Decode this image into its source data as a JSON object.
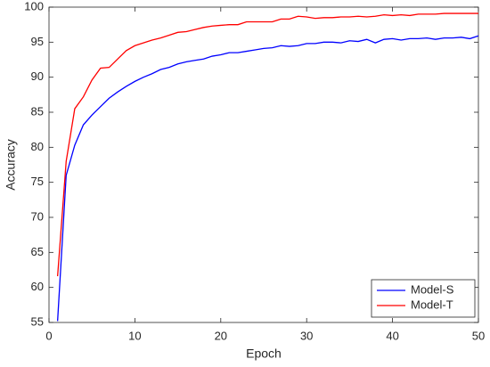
{
  "chart_data": {
    "type": "line",
    "x_label": "Epoch",
    "y_label": "Accuracy",
    "x": [
      1,
      2,
      3,
      4,
      5,
      6,
      7,
      8,
      9,
      10,
      11,
      12,
      13,
      14,
      15,
      16,
      17,
      18,
      19,
      20,
      21,
      22,
      23,
      24,
      25,
      26,
      27,
      28,
      29,
      30,
      31,
      32,
      33,
      34,
      35,
      36,
      37,
      38,
      39,
      40,
      41,
      42,
      43,
      44,
      45,
      46,
      47,
      48,
      49,
      50
    ],
    "series": [
      {
        "name": "Model-S",
        "color": "#0000ff",
        "values": [
          55.2,
          76,
          80.3,
          83.2,
          84.6,
          85.8,
          87,
          87.9,
          88.7,
          89.4,
          90,
          90.5,
          91.1,
          91.4,
          91.9,
          92.2,
          92.4,
          92.6,
          93,
          93.2,
          93.5,
          93.5,
          93.7,
          93.9,
          94.1,
          94.2,
          94.5,
          94.4,
          94.5,
          94.8,
          94.8,
          95,
          95,
          94.9,
          95.2,
          95.1,
          95.4,
          94.9,
          95.4,
          95.5,
          95.3,
          95.5,
          95.5,
          95.6,
          95.4,
          95.6,
          95.6,
          95.7,
          95.5,
          95.9
        ]
      },
      {
        "name": "Model-T",
        "color": "#ff0000",
        "values": [
          61.6,
          78,
          85.5,
          87.2,
          89.6,
          91.3,
          91.4,
          92.6,
          93.8,
          94.5,
          94.9,
          95.3,
          95.6,
          96,
          96.4,
          96.5,
          96.8,
          97.1,
          97.3,
          97.4,
          97.5,
          97.5,
          97.9,
          97.9,
          97.9,
          97.9,
          98.3,
          98.3,
          98.7,
          98.6,
          98.4,
          98.5,
          98.5,
          98.6,
          98.6,
          98.7,
          98.6,
          98.7,
          98.9,
          98.8,
          98.9,
          98.8,
          99,
          99,
          99,
          99.1,
          99.1,
          99.1,
          99.1,
          99.1
        ]
      }
    ],
    "xlim": [
      0,
      50
    ],
    "xticks": [
      0,
      10,
      20,
      30,
      40,
      50
    ],
    "ylim": [
      55,
      100
    ],
    "yticks": [
      55,
      60,
      65,
      70,
      75,
      80,
      85,
      90,
      95,
      100
    ],
    "grid": false,
    "legend": "lower right"
  }
}
